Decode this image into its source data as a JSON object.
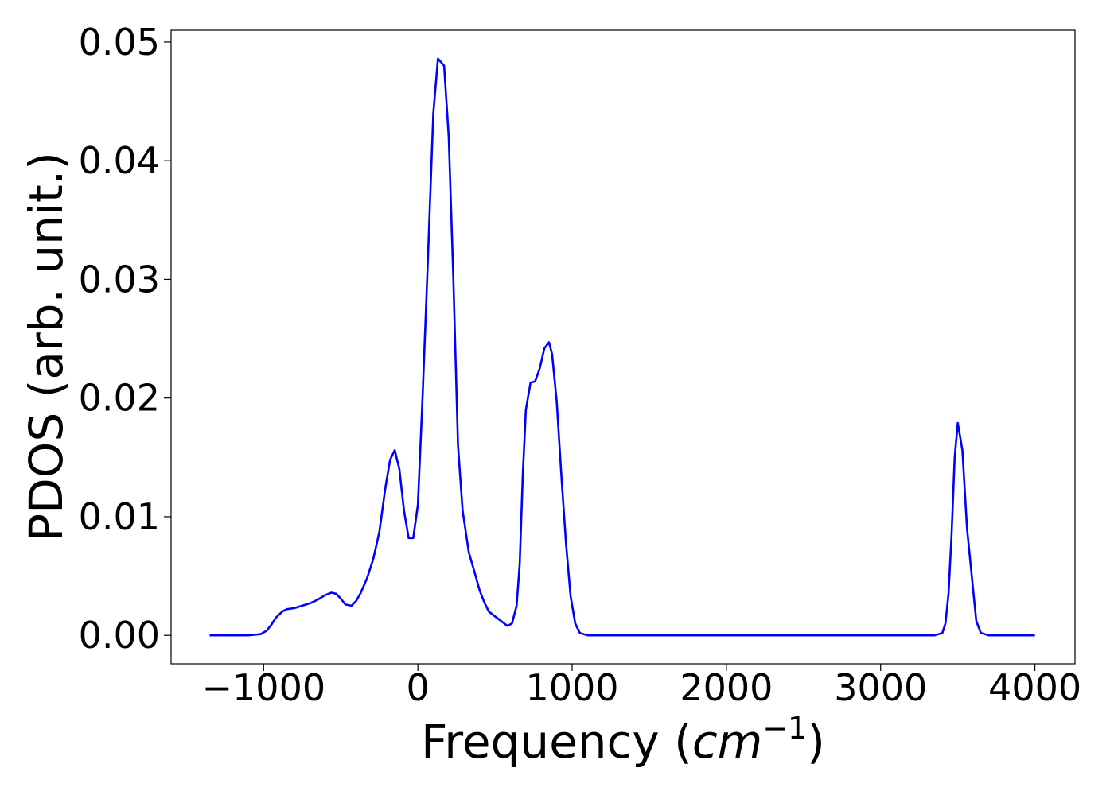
{
  "chart_data": {
    "type": "line",
    "title": "",
    "xlabel": {
      "text": "Frequency (",
      "math_base": "cm",
      "math_sup": "−1",
      "suffix": ")"
    },
    "ylabel": "PDOS (arb. unit.)",
    "xlim": [
      -1600,
      4260
    ],
    "ylim": [
      -0.0024,
      0.051
    ],
    "xticks": [
      -1000,
      0,
      1000,
      2000,
      3000,
      4000
    ],
    "xtick_labels": [
      "−1000",
      "0",
      "1000",
      "2000",
      "3000",
      "4000"
    ],
    "yticks": [
      0.0,
      0.01,
      0.02,
      0.03,
      0.04,
      0.05
    ],
    "ytick_labels": [
      "0.00",
      "0.01",
      "0.02",
      "0.03",
      "0.04",
      "0.05"
    ],
    "grid": false,
    "series": [
      {
        "color": "#0000ff",
        "x": [
          -1350,
          -1100,
          -1020,
          -980,
          -950,
          -920,
          -880,
          -850,
          -800,
          -750,
          -700,
          -650,
          -600,
          -560,
          -530,
          -500,
          -470,
          -430,
          -400,
          -370,
          -330,
          -290,
          -250,
          -210,
          -180,
          -150,
          -120,
          -90,
          -60,
          -30,
          0,
          30,
          60,
          100,
          130,
          170,
          200,
          230,
          260,
          290,
          330,
          370,
          400,
          430,
          460,
          500,
          540,
          580,
          610,
          640,
          660,
          680,
          700,
          730,
          760,
          790,
          820,
          850,
          870,
          900,
          930,
          960,
          990,
          1020,
          1050,
          1100,
          1500,
          2000,
          2500,
          3000,
          3350,
          3400,
          3420,
          3440,
          3460,
          3480,
          3500,
          3530,
          3560,
          3600,
          3620,
          3650,
          3700,
          4000
        ],
        "y": [
          0.0,
          0.0,
          0.0001,
          0.0004,
          0.0009,
          0.0015,
          0.002,
          0.0022,
          0.0023,
          0.0025,
          0.0027,
          0.003,
          0.0034,
          0.0036,
          0.0035,
          0.0031,
          0.0026,
          0.0025,
          0.0029,
          0.0036,
          0.0048,
          0.0064,
          0.0087,
          0.0125,
          0.0148,
          0.0156,
          0.014,
          0.0105,
          0.0082,
          0.0082,
          0.011,
          0.02,
          0.03,
          0.044,
          0.0486,
          0.048,
          0.042,
          0.03,
          0.016,
          0.0105,
          0.007,
          0.0052,
          0.0038,
          0.0028,
          0.002,
          0.0016,
          0.0012,
          0.0008,
          0.001,
          0.0025,
          0.006,
          0.0135,
          0.019,
          0.0213,
          0.0214,
          0.0225,
          0.0242,
          0.0247,
          0.0237,
          0.0197,
          0.0135,
          0.0078,
          0.0033,
          0.001,
          0.0002,
          0.0,
          0.0,
          0.0,
          0.0,
          0.0,
          0.0,
          0.0002,
          0.001,
          0.0035,
          0.0085,
          0.015,
          0.0179,
          0.0156,
          0.009,
          0.0038,
          0.0012,
          0.0002,
          0.0,
          0.0
        ]
      }
    ]
  }
}
